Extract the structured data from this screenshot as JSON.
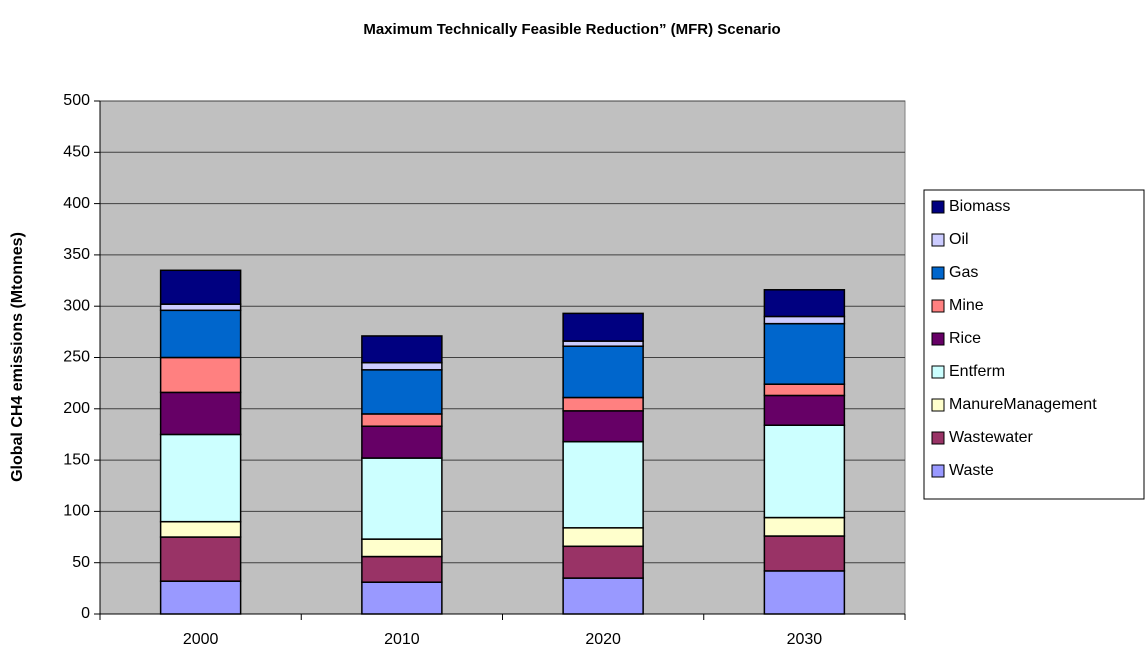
{
  "chart_data": {
    "type": "stacked_bar",
    "title": "Maximum Technically Feasible Reduction” (MFR) Scenario",
    "y_label": "Global CH4 emissions (Mtonnes)",
    "categories": [
      "2000",
      "2010",
      "2020",
      "2030"
    ],
    "series": [
      {
        "name": "Waste",
        "color": "#9999ff",
        "values": [
          32,
          31,
          35,
          42
        ]
      },
      {
        "name": "Wastewater",
        "color": "#993366",
        "values": [
          43,
          25,
          31,
          34
        ]
      },
      {
        "name": "ManureManagement",
        "color": "#ffffcc",
        "values": [
          15,
          17,
          18,
          18
        ]
      },
      {
        "name": "Entferm",
        "color": "#ccffff",
        "values": [
          85,
          79,
          84,
          90
        ]
      },
      {
        "name": "Rice",
        "color": "#660066",
        "values": [
          41,
          31,
          30,
          29
        ]
      },
      {
        "name": "Mine",
        "color": "#ff8080",
        "values": [
          34,
          12,
          13,
          11
        ]
      },
      {
        "name": "Gas",
        "color": "#0066cc",
        "values": [
          46,
          43,
          50,
          59
        ]
      },
      {
        "name": "Oil",
        "color": "#ccccff",
        "values": [
          6,
          7,
          5,
          7
        ]
      },
      {
        "name": "Biomass",
        "color": "#000080",
        "values": [
          33,
          26,
          27,
          26
        ]
      }
    ],
    "ylim": [
      0,
      500
    ],
    "yticks": [
      0,
      50,
      100,
      150,
      200,
      250,
      300,
      350,
      400,
      450,
      500
    ],
    "grid": true,
    "legend": "right"
  }
}
